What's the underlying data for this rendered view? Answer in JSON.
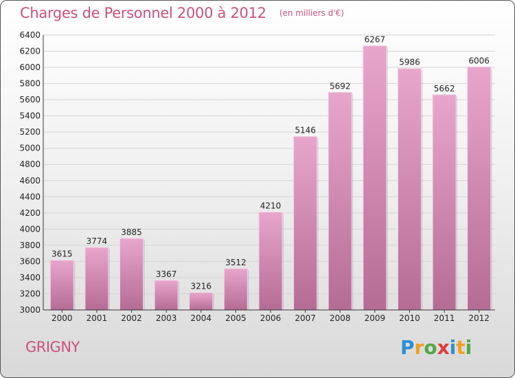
{
  "title": "Charges de Personnel 2000 à 2012",
  "subtitle": "(en milliers d'€)",
  "commune": "GRIGNY",
  "logo": {
    "letters": [
      {
        "ch": "P",
        "color": "#2d8fd5"
      },
      {
        "ch": "r",
        "color": "#f0a020"
      },
      {
        "ch": "o",
        "color": "#54a844"
      },
      {
        "ch": "x",
        "color": "#e03a3a"
      },
      {
        "ch": "i",
        "color": "#2d8fd5"
      },
      {
        "ch": "t",
        "color": "#f0a020"
      },
      {
        "ch": "i",
        "color": "#54a844"
      }
    ]
  },
  "colors": {
    "accent": "#cc4f7e",
    "bar_light": "#e8a6cc",
    "bar_dark": "#b56c94",
    "grid": "#d4d4d4"
  },
  "chart_data": {
    "type": "bar",
    "title": "Charges de Personnel 2000 à 2012",
    "unit": "(en milliers d'€)",
    "categories": [
      "2000",
      "2001",
      "2002",
      "2003",
      "2004",
      "2005",
      "2006",
      "2007",
      "2008",
      "2009",
      "2010",
      "2011",
      "2012"
    ],
    "values": [
      3615,
      3774,
      3885,
      3367,
      3216,
      3512,
      4210,
      5146,
      5692,
      6267,
      5986,
      5662,
      6006
    ],
    "ylim": [
      3000,
      6400
    ],
    "yticks": [
      3000,
      3200,
      3400,
      3600,
      3800,
      4000,
      4200,
      4400,
      4600,
      4800,
      5000,
      5200,
      5400,
      5600,
      5800,
      6000,
      6200,
      6400
    ],
    "grid": true,
    "legend": "none"
  }
}
